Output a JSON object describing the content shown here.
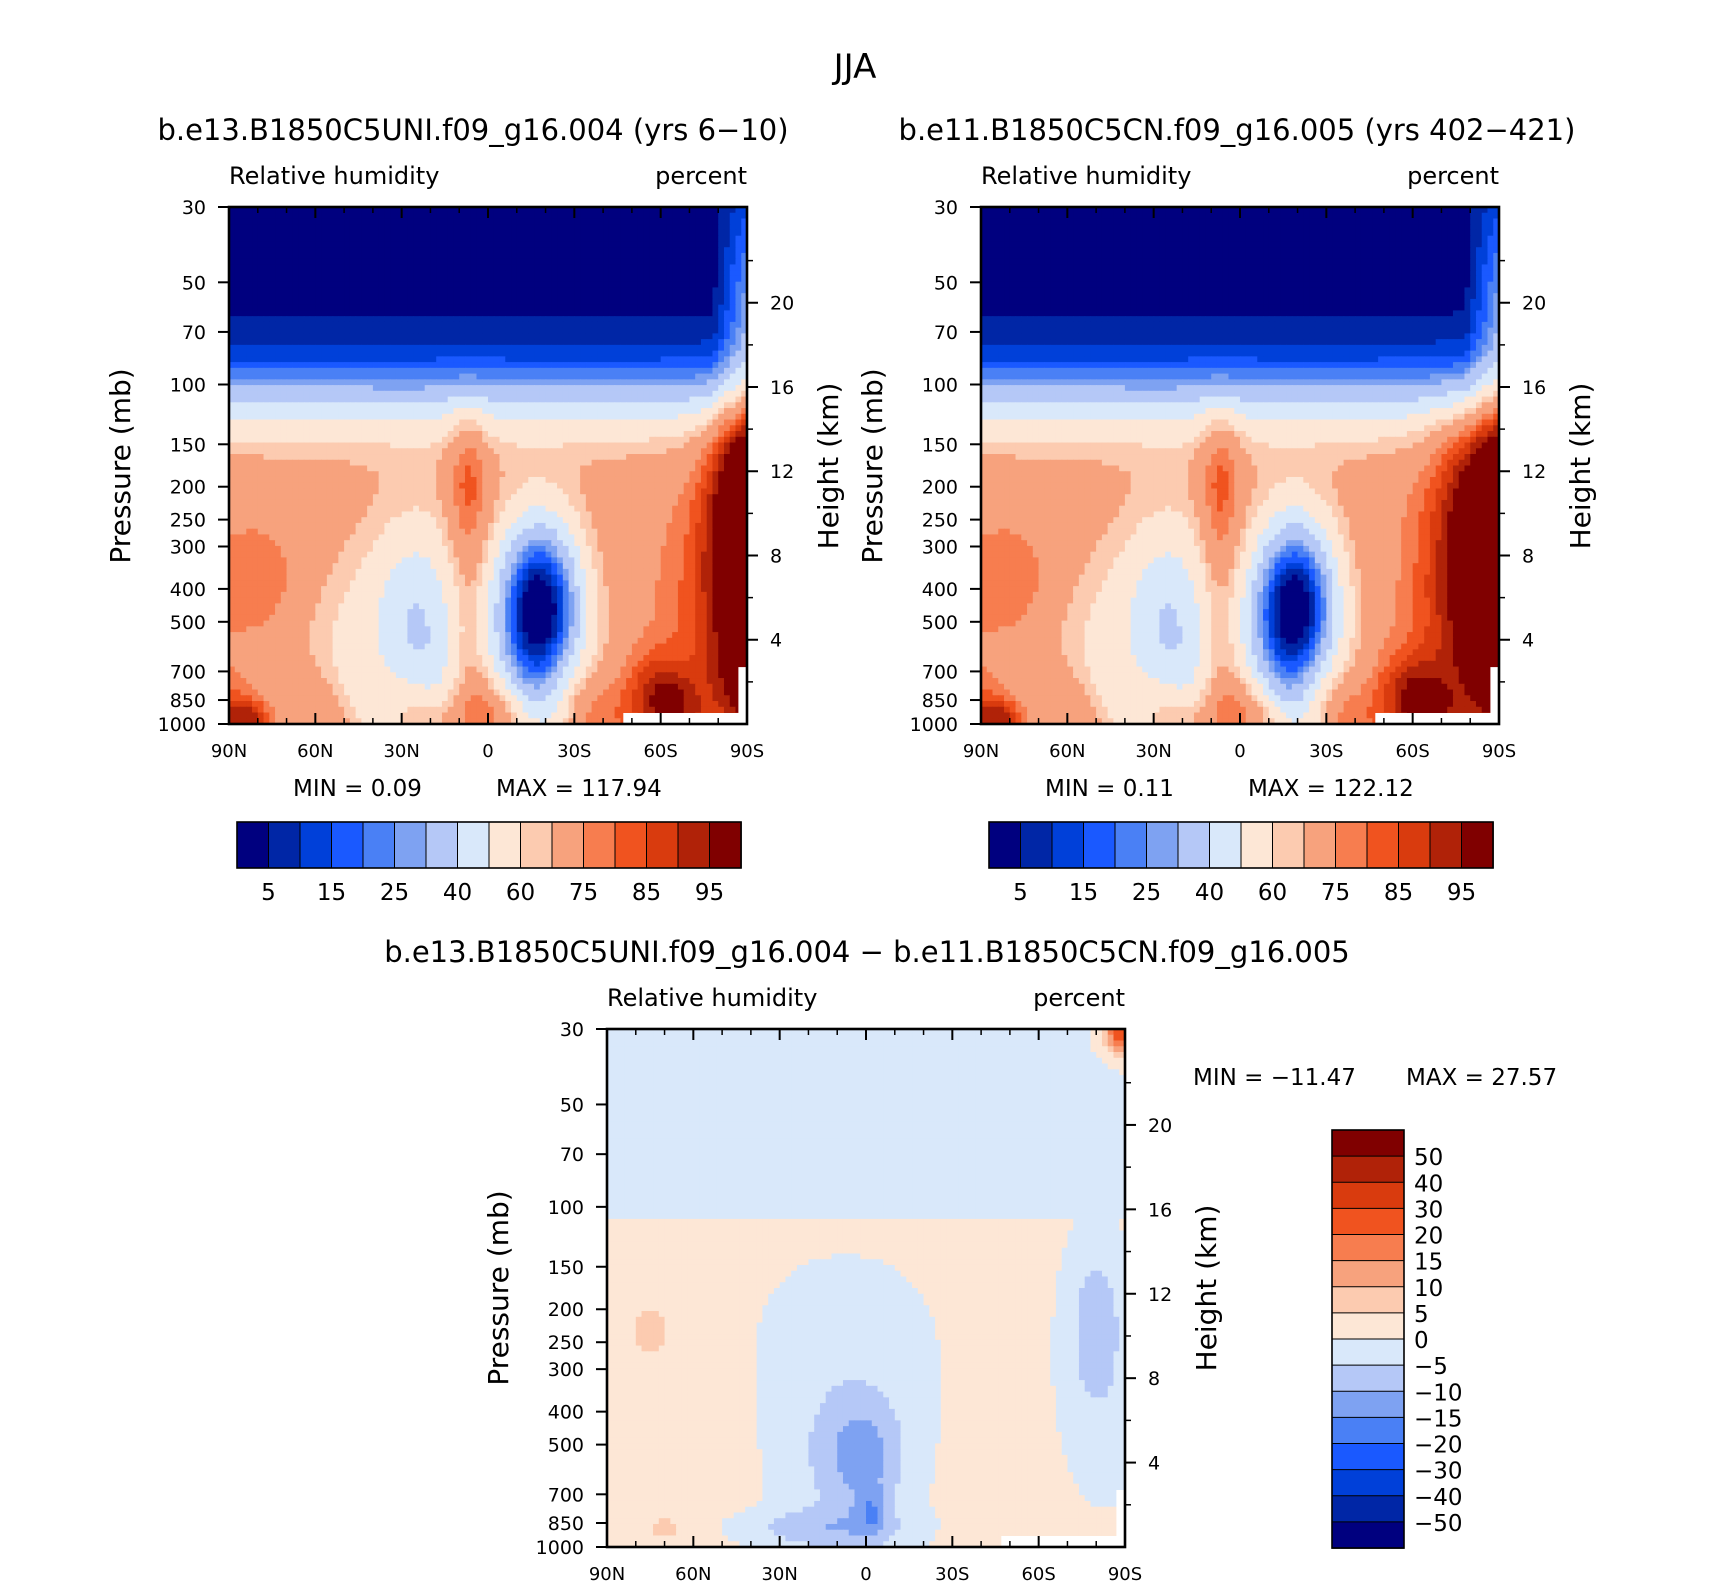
{
  "figure_title": "JJA",
  "colors": {
    "rh_levels": [
      "#00007f",
      "#0026a6",
      "#0040d9",
      "#1a59ff",
      "#4a80f5",
      "#7ea2f2",
      "#b5c8f7",
      "#d9e8fa",
      "#fde7d6",
      "#fccbb0",
      "#f7a27d",
      "#f77d4f",
      "#f0531f",
      "#d93b0e",
      "#b02208",
      "#800000"
    ],
    "diff_levels": [
      "#00007f",
      "#0026a6",
      "#0040d9",
      "#1a59ff",
      "#4a80f5",
      "#7ea2f2",
      "#b5c8f7",
      "#d9e8fa",
      "#fde7d6",
      "#fccbb0",
      "#f7a27d",
      "#f77d4f",
      "#f0531f",
      "#d93b0e",
      "#b02208",
      "#800000"
    ]
  },
  "panels": {
    "left": {
      "title": "b.e13.B1850C5UNI.f09_g16.004 (yrs 6-10)",
      "var_label": "Relative humidity",
      "units_label": "percent",
      "min_text": "MIN =     0.09",
      "max_text": "MAX = 117.94"
    },
    "right": {
      "title": "b.e11.B1850C5CN.f09_g16.005 (yrs 402-421)",
      "var_label": "Relative humidity",
      "units_label": "percent",
      "min_text": "MIN =     0.11",
      "max_text": "MAX = 122.12"
    },
    "diff": {
      "title": "b.e13.B1850C5UNI.f09_g16.004 - b.e11.B1850C5CN.f09_g16.005",
      "var_label": "Relative humidity",
      "units_label": "percent",
      "min_text": "MIN = -11.47",
      "max_text": "MAX =   27.57"
    }
  },
  "chart_data": [
    {
      "type": "heatmap",
      "title": "b.e13.B1850C5UNI.f09_g16.004 (yrs 6-10)",
      "variable": "Relative humidity",
      "units": "percent",
      "xlabel": "",
      "ylabel": "Pressure (mb)",
      "y2label": "Height (km)",
      "x_ticks": [
        "90N",
        "60N",
        "30N",
        "0",
        "30S",
        "60S",
        "90S"
      ],
      "x_range": [
        90,
        -90
      ],
      "y_ticks": [
        30,
        50,
        70,
        100,
        150,
        200,
        250,
        300,
        400,
        500,
        700,
        850,
        1000
      ],
      "y_range": [
        1000,
        30
      ],
      "height_ticks_km": [
        20,
        16,
        12,
        8,
        4
      ],
      "levels": [
        5,
        10,
        15,
        20,
        25,
        30,
        40,
        50,
        60,
        65,
        75,
        80,
        85,
        90,
        95
      ],
      "colorbar_labels": [
        "5",
        "15",
        "25",
        "40",
        "60",
        "75",
        "85",
        "95"
      ],
      "min": 0.09,
      "max": 117.94,
      "features": [
        {
          "lat": 60,
          "p": 50,
          "value": 1
        },
        {
          "lat": -40,
          "p": 50,
          "value": 2
        },
        {
          "lat": -88,
          "p": 250,
          "value": 110
        },
        {
          "lat": -88,
          "p": 550,
          "value": 100
        },
        {
          "lat": -18,
          "p": 430,
          "value": 12
        },
        {
          "lat": -15,
          "p": 550,
          "value": 28
        },
        {
          "lat": 28,
          "p": 450,
          "value": 48
        },
        {
          "lat": 8,
          "p": 150,
          "value": 82
        },
        {
          "lat": 80,
          "p": 380,
          "value": 82
        },
        {
          "lat": -55,
          "p": 900,
          "value": 93
        },
        {
          "lat": 5,
          "p": 930,
          "value": 90
        },
        {
          "lat": 85,
          "p": 960,
          "value": 92
        },
        {
          "lat": 45,
          "p": 760,
          "value": 68
        }
      ]
    },
    {
      "type": "heatmap",
      "title": "b.e11.B1850C5CN.f09_g16.005 (yrs 402-421)",
      "variable": "Relative humidity",
      "units": "percent",
      "xlabel": "",
      "ylabel": "Pressure (mb)",
      "y2label": "Height (km)",
      "x_ticks": [
        "90N",
        "60N",
        "30N",
        "0",
        "30S",
        "60S",
        "90S"
      ],
      "x_range": [
        90,
        -90
      ],
      "y_ticks": [
        30,
        50,
        70,
        100,
        150,
        200,
        250,
        300,
        400,
        500,
        700,
        850,
        1000
      ],
      "y_range": [
        1000,
        30
      ],
      "height_ticks_km": [
        20,
        16,
        12,
        8,
        4
      ],
      "levels": [
        5,
        10,
        15,
        20,
        25,
        30,
        40,
        50,
        60,
        65,
        75,
        80,
        85,
        90,
        95
      ],
      "colorbar_labels": [
        "5",
        "15",
        "25",
        "40",
        "60",
        "75",
        "85",
        "95"
      ],
      "min": 0.11,
      "max": 122.12,
      "features": [
        {
          "lat": 60,
          "p": 50,
          "value": 1
        },
        {
          "lat": -40,
          "p": 50,
          "value": 2
        },
        {
          "lat": -88,
          "p": 250,
          "value": 115
        },
        {
          "lat": -88,
          "p": 550,
          "value": 100
        },
        {
          "lat": -18,
          "p": 430,
          "value": 10
        },
        {
          "lat": -15,
          "p": 560,
          "value": 25
        },
        {
          "lat": 28,
          "p": 450,
          "value": 48
        },
        {
          "lat": 12,
          "p": 150,
          "value": 82
        },
        {
          "lat": 80,
          "p": 380,
          "value": 82
        },
        {
          "lat": -50,
          "p": 900,
          "value": 93
        },
        {
          "lat": 5,
          "p": 930,
          "value": 92
        },
        {
          "lat": 85,
          "p": 960,
          "value": 92
        },
        {
          "lat": 70,
          "p": 900,
          "value": 62
        }
      ]
    },
    {
      "type": "heatmap",
      "title": "b.e13.B1850C5UNI.f09_g16.004 - b.e11.B1850C5CN.f09_g16.005",
      "variable": "Relative humidity",
      "units": "percent",
      "xlabel": "",
      "ylabel": "Pressure (mb)",
      "y2label": "Height (km)",
      "x_ticks": [
        "90N",
        "60N",
        "30N",
        "0",
        "30S",
        "60S",
        "90S"
      ],
      "x_range": [
        90,
        -90
      ],
      "y_ticks": [
        30,
        50,
        70,
        100,
        150,
        200,
        250,
        300,
        400,
        500,
        700,
        850,
        1000
      ],
      "y_range": [
        1000,
        30
      ],
      "height_ticks_km": [
        20,
        16,
        12,
        8,
        4
      ],
      "levels": [
        -50,
        -40,
        -30,
        -20,
        -15,
        -10,
        -5,
        0,
        5,
        10,
        15,
        20,
        30,
        40,
        50
      ],
      "colorbar_labels": [
        "50",
        "40",
        "30",
        "20",
        "15",
        "10",
        "5",
        "0",
        "-5",
        "-10",
        "-15",
        "-20",
        "-30",
        "-40",
        "-50"
      ],
      "min": -11.47,
      "max": 27.57,
      "features": [
        {
          "lat": -88,
          "p": 32,
          "value": 27
        },
        {
          "lat": -80,
          "p": 200,
          "value": -9
        },
        {
          "lat": 0,
          "p": 500,
          "value": -8
        },
        {
          "lat": 0,
          "p": 780,
          "value": -9
        },
        {
          "lat": 20,
          "p": 880,
          "value": -7
        },
        {
          "lat": 75,
          "p": 230,
          "value": 4
        },
        {
          "lat": 70,
          "p": 880,
          "value": 4
        },
        {
          "lat": -50,
          "p": 600,
          "value": 2
        },
        {
          "lat": 50,
          "p": 600,
          "value": 2
        },
        {
          "lat": 10,
          "p": 300,
          "value": -3
        }
      ]
    }
  ]
}
